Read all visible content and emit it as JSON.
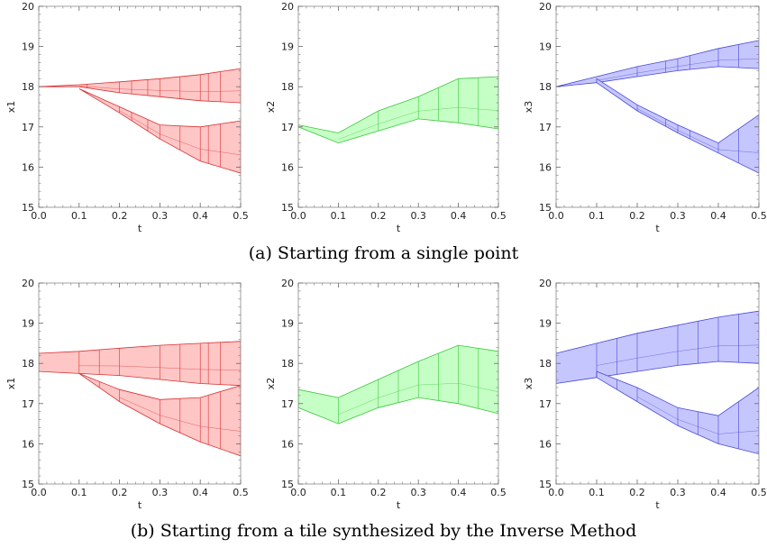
{
  "captions": {
    "a": "(a) Starting from a single point",
    "b": "(b) Starting from a tile synthesized by the Inverse Method"
  },
  "colors": {
    "red_fill": "#ffc6c6",
    "red_line": "#d93030",
    "green_fill": "#c6ffc6",
    "green_line": "#38c838",
    "blue_fill": "#c6c6ff",
    "blue_line": "#4848d8"
  },
  "chart_data": [
    {
      "type": "area",
      "panel": "a1",
      "xlabel": "t",
      "ylabel": "x1",
      "xlim": [
        0.0,
        0.5
      ],
      "ylim": [
        15,
        20
      ],
      "xticks": [
        "0.0",
        "0.1",
        "0.2",
        "0.3",
        "0.4",
        "0.5"
      ],
      "yticks": [
        "15",
        "16",
        "17",
        "18",
        "19",
        "20"
      ],
      "color": "red",
      "bands": [
        {
          "name": "upper",
          "x": [
            0.0,
            0.1,
            0.2,
            0.3,
            0.4,
            0.5
          ],
          "lower": [
            18.0,
            18.0,
            17.85,
            17.75,
            17.65,
            17.6
          ],
          "upper": [
            18.0,
            18.05,
            18.12,
            18.2,
            18.3,
            18.45
          ]
        },
        {
          "name": "lower",
          "x": [
            0.1,
            0.2,
            0.3,
            0.4,
            0.5
          ],
          "lower": [
            17.95,
            17.35,
            16.7,
            16.15,
            15.85
          ],
          "upper": [
            17.95,
            17.5,
            17.05,
            17.0,
            17.15
          ]
        }
      ],
      "verticals": [
        0.12,
        0.2,
        0.23,
        0.27,
        0.3,
        0.35,
        0.4,
        0.42,
        0.45
      ]
    },
    {
      "type": "area",
      "panel": "a2",
      "xlabel": "t",
      "ylabel": "x2",
      "xlim": [
        0.0,
        0.5
      ],
      "ylim": [
        15,
        20
      ],
      "xticks": [
        "0.0",
        "0.1",
        "0.2",
        "0.3",
        "0.4",
        "0.5"
      ],
      "yticks": [
        "15",
        "16",
        "17",
        "18",
        "19",
        "20"
      ],
      "color": "green",
      "bands": [
        {
          "name": "main",
          "x": [
            0.0,
            0.1,
            0.2,
            0.3,
            0.4,
            0.5
          ],
          "lower": [
            17.0,
            16.6,
            16.9,
            17.2,
            17.1,
            16.95
          ],
          "upper": [
            17.05,
            16.85,
            17.4,
            17.75,
            18.2,
            18.25
          ]
        }
      ],
      "verticals": [
        0.2,
        0.3,
        0.35,
        0.4,
        0.45
      ]
    },
    {
      "type": "area",
      "panel": "a3",
      "xlabel": "t",
      "ylabel": "x3",
      "xlim": [
        0.0,
        0.5
      ],
      "ylim": [
        15,
        20
      ],
      "xticks": [
        "0.0",
        "0.1",
        "0.2",
        "0.3",
        "0.4",
        "0.5"
      ],
      "yticks": [
        "15",
        "16",
        "17",
        "18",
        "19",
        "20"
      ],
      "color": "blue",
      "bands": [
        {
          "name": "upper",
          "x": [
            0.0,
            0.1,
            0.2,
            0.3,
            0.4,
            0.5
          ],
          "lower": [
            18.0,
            18.1,
            18.25,
            18.4,
            18.5,
            18.45
          ],
          "upper": [
            18.0,
            18.25,
            18.5,
            18.7,
            18.95,
            19.15
          ]
        },
        {
          "name": "lower",
          "x": [
            0.1,
            0.2,
            0.3,
            0.4,
            0.5
          ],
          "lower": [
            18.1,
            17.4,
            16.85,
            16.35,
            15.85
          ],
          "upper": [
            18.2,
            17.55,
            17.05,
            16.6,
            17.3
          ]
        }
      ],
      "verticals": [
        0.2,
        0.27,
        0.3,
        0.33,
        0.4,
        0.45
      ]
    },
    {
      "type": "area",
      "panel": "b1",
      "xlabel": "t",
      "ylabel": "x1",
      "xlim": [
        0.0,
        0.5
      ],
      "ylim": [
        15,
        20
      ],
      "xticks": [
        "0.0",
        "0.1",
        "0.2",
        "0.3",
        "0.4",
        "0.5"
      ],
      "yticks": [
        "15",
        "16",
        "17",
        "18",
        "19",
        "20"
      ],
      "color": "red",
      "bands": [
        {
          "name": "upper",
          "x": [
            0.0,
            0.1,
            0.2,
            0.3,
            0.4,
            0.5
          ],
          "lower": [
            17.8,
            17.75,
            17.7,
            17.6,
            17.5,
            17.45
          ],
          "upper": [
            18.25,
            18.3,
            18.38,
            18.45,
            18.5,
            18.55
          ]
        },
        {
          "name": "lower",
          "x": [
            0.1,
            0.2,
            0.3,
            0.4,
            0.5
          ],
          "lower": [
            17.75,
            17.05,
            16.5,
            16.05,
            15.7
          ],
          "upper": [
            17.75,
            17.35,
            17.1,
            17.15,
            17.45
          ]
        }
      ],
      "verticals": [
        0.1,
        0.15,
        0.2,
        0.3,
        0.35,
        0.4,
        0.42,
        0.45
      ]
    },
    {
      "type": "area",
      "panel": "b2",
      "xlabel": "t",
      "ylabel": "x2",
      "xlim": [
        0.0,
        0.5
      ],
      "ylim": [
        15,
        20
      ],
      "xticks": [
        "0.0",
        "0.1",
        "0.2",
        "0.3",
        "0.4",
        "0.5"
      ],
      "yticks": [
        "15",
        "16",
        "17",
        "18",
        "19",
        "20"
      ],
      "color": "green",
      "bands": [
        {
          "name": "main",
          "x": [
            0.0,
            0.1,
            0.2,
            0.3,
            0.4,
            0.5
          ],
          "lower": [
            16.9,
            16.5,
            16.9,
            17.15,
            17.0,
            16.75
          ],
          "upper": [
            17.35,
            17.15,
            17.6,
            18.05,
            18.45,
            18.3
          ]
        }
      ],
      "verticals": [
        0.1,
        0.2,
        0.25,
        0.3,
        0.35,
        0.4,
        0.45
      ]
    },
    {
      "type": "area",
      "panel": "b3",
      "xlabel": "t",
      "ylabel": "x3",
      "xlim": [
        0.0,
        0.5
      ],
      "ylim": [
        15,
        20
      ],
      "xticks": [
        "0.0",
        "0.1",
        "0.2",
        "0.3",
        "0.4",
        "0.5"
      ],
      "yticks": [
        "15",
        "16",
        "17",
        "18",
        "19",
        "20"
      ],
      "color": "blue",
      "bands": [
        {
          "name": "upper",
          "x": [
            0.0,
            0.1,
            0.2,
            0.3,
            0.4,
            0.5
          ],
          "lower": [
            17.5,
            17.65,
            17.8,
            17.95,
            18.05,
            18.0
          ],
          "upper": [
            18.25,
            18.5,
            18.75,
            18.95,
            19.15,
            19.3
          ]
        },
        {
          "name": "lower",
          "x": [
            0.1,
            0.2,
            0.3,
            0.4,
            0.5
          ],
          "lower": [
            17.65,
            17.05,
            16.45,
            16.0,
            15.75
          ],
          "upper": [
            17.8,
            17.4,
            16.9,
            16.7,
            17.4
          ]
        }
      ],
      "verticals": [
        0.1,
        0.15,
        0.2,
        0.3,
        0.35,
        0.4,
        0.45
      ]
    }
  ]
}
